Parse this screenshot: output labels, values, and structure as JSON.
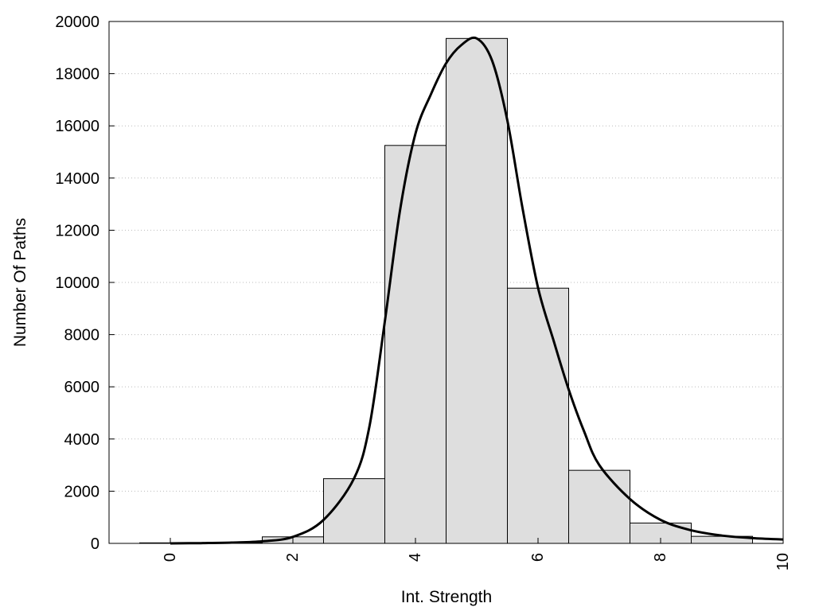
{
  "chart_data": {
    "type": "bar",
    "xlabel": "Int. Strength",
    "ylabel": "Number Of Paths",
    "xlim": [
      -1,
      10
    ],
    "ylim": [
      0,
      20000
    ],
    "xticks": [
      0,
      2,
      4,
      6,
      8,
      10
    ],
    "yticks": [
      0,
      2000,
      4000,
      6000,
      8000,
      10000,
      12000,
      14000,
      16000,
      18000,
      20000
    ],
    "bin_width": 1,
    "bins": [
      {
        "center": 0,
        "value": 20
      },
      {
        "center": 1,
        "value": 30
      },
      {
        "center": 2,
        "value": 250
      },
      {
        "center": 3,
        "value": 2480
      },
      {
        "center": 4,
        "value": 15250
      },
      {
        "center": 5,
        "value": 19350
      },
      {
        "center": 6,
        "value": 9780
      },
      {
        "center": 7,
        "value": 2800
      },
      {
        "center": 8,
        "value": 780
      },
      {
        "center": 9,
        "value": 270
      },
      {
        "center": 10,
        "value": 0
      }
    ],
    "curve": {
      "x": [
        0,
        0.5,
        1,
        1.5,
        2,
        2.5,
        3,
        3.25,
        3.5,
        3.75,
        4,
        4.25,
        4.5,
        4.75,
        5,
        5.25,
        5.5,
        5.75,
        6,
        6.25,
        6.5,
        6.75,
        7,
        7.5,
        8,
        8.5,
        9,
        9.5,
        10
      ],
      "y": [
        0,
        10,
        30,
        80,
        250,
        900,
        2500,
        4500,
        8500,
        12800,
        15700,
        17200,
        18400,
        19100,
        19350,
        18500,
        16200,
        12800,
        9800,
        7800,
        5900,
        4300,
        3000,
        1700,
        900,
        500,
        300,
        200,
        150
      ]
    },
    "grid": {
      "x": false,
      "y": true,
      "style": "dotted"
    },
    "colors": {
      "bar_fill": "#dedede",
      "bar_stroke": "#000000",
      "curve": "#000000",
      "grid": "#bbbbbb",
      "background": "#ffffff"
    }
  }
}
